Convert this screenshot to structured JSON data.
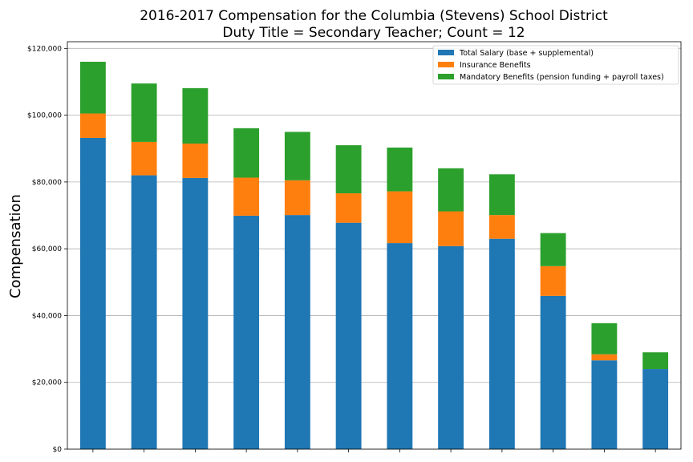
{
  "colors": {
    "salary": "#1f77b4",
    "insurance": "#ff7f0e",
    "mandatory": "#2ca02c",
    "grid": "#b0b0b0"
  },
  "chart_data": {
    "type": "bar",
    "stacked": true,
    "title": "2016-2017 Compensation for the Columbia (Stevens) School District",
    "subtitle": "Duty Title = Secondary Teacher; Count = 12",
    "xlabel": "",
    "ylabel": "Compensation",
    "ylim": [
      0,
      122000
    ],
    "yticks": [
      0,
      20000,
      40000,
      60000,
      80000,
      100000,
      120000
    ],
    "ytick_labels": [
      "$0",
      "$20,000",
      "$40,000",
      "$60,000",
      "$80,000",
      "$100,000",
      "$120,000"
    ],
    "grid": "horizontal",
    "legend_position": "top-right",
    "categories": [
      "",
      "",
      "",
      "",
      "",
      "",
      "",
      "",
      "",
      "",
      "",
      ""
    ],
    "series": [
      {
        "name": "Total Salary (base + supplemental)",
        "values": [
          93200,
          82000,
          81200,
          69900,
          70100,
          67800,
          61700,
          60800,
          63000,
          45900,
          26600,
          24000
        ]
      },
      {
        "name": "Insurance Benefits",
        "values": [
          7300,
          10000,
          10300,
          11400,
          10400,
          8800,
          15500,
          10400,
          7100,
          8900,
          1800,
          0
        ]
      },
      {
        "name": "Mandatory Benefits (pension funding + payroll taxes)",
        "values": [
          15500,
          17500,
          16600,
          14800,
          14500,
          14400,
          13100,
          12900,
          12200,
          9900,
          9300,
          5000
        ]
      }
    ]
  }
}
